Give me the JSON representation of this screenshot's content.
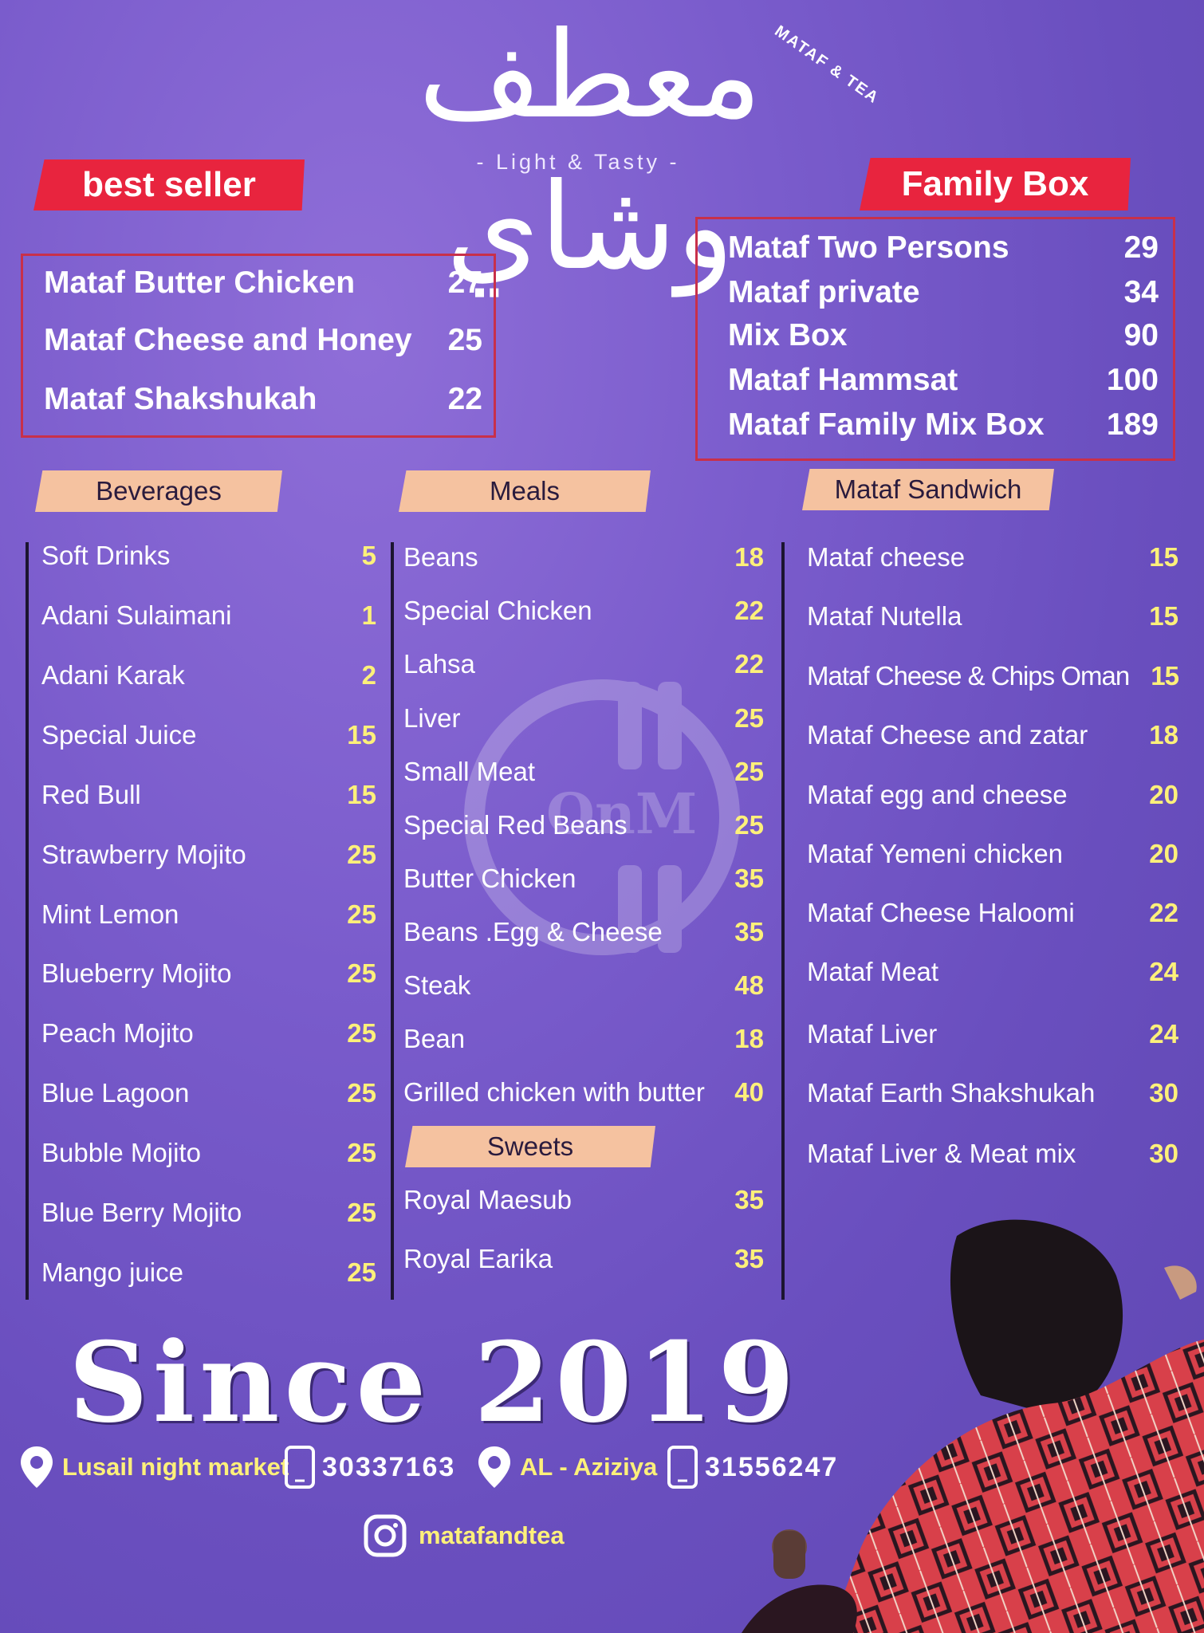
{
  "brand": {
    "arabic_logo": "معطف وشاي",
    "english_logo": "MATAF & TEA",
    "tagline": "- Light & Tasty -"
  },
  "best_seller": {
    "title": "best seller",
    "items": [
      {
        "name": "Mataf Butter Chicken",
        "price": "27"
      },
      {
        "name": "Mataf Cheese and Honey",
        "price": "25"
      },
      {
        "name": "Mataf Shakshukah",
        "price": "22"
      }
    ]
  },
  "family_box": {
    "title": "Family Box",
    "items": [
      {
        "name": "Mataf Two Persons",
        "price": "29"
      },
      {
        "name": "Mataf private",
        "price": "34"
      },
      {
        "name": "Mix Box",
        "price": "90"
      },
      {
        "name": "Mataf Hammsat",
        "price": "100"
      },
      {
        "name": "Mataf Family Mix Box",
        "price": "189"
      }
    ]
  },
  "beverages": {
    "title": "Beverages",
    "items": [
      {
        "name": "Soft Drinks",
        "price": "5"
      },
      {
        "name": "Adani Sulaimani",
        "price": "1"
      },
      {
        "name": "Adani Karak",
        "price": "2"
      },
      {
        "name": "Special Juice",
        "price": "15"
      },
      {
        "name": "Red Bull",
        "price": "15"
      },
      {
        "name": "Strawberry Mojito",
        "price": "25"
      },
      {
        "name": "Mint Lemon",
        "price": "25"
      },
      {
        "name": "Blueberry Mojito",
        "price": "25"
      },
      {
        "name": "Peach Mojito",
        "price": "25"
      },
      {
        "name": "Blue Lagoon",
        "price": "25"
      },
      {
        "name": "Bubble Mojito",
        "price": "25"
      },
      {
        "name": "Blue Berry Mojito",
        "price": "25"
      },
      {
        "name": "Mango juice",
        "price": "25"
      }
    ]
  },
  "meals": {
    "title": "Meals",
    "items": [
      {
        "name": "Beans",
        "price": "18"
      },
      {
        "name": "Special Chicken",
        "price": "22"
      },
      {
        "name": "Lahsa",
        "price": "22"
      },
      {
        "name": "Liver",
        "price": "25"
      },
      {
        "name": "Small Meat",
        "price": "25"
      },
      {
        "name": "Special Red Beans",
        "price": "25"
      },
      {
        "name": "Butter Chicken",
        "price": "35"
      },
      {
        "name": "Beans .Egg & Cheese",
        "price": "35"
      },
      {
        "name": "Steak",
        "price": "48"
      },
      {
        "name": "Bean",
        "price": "18"
      },
      {
        "name": "Grilled chicken with butter",
        "price": "40"
      }
    ]
  },
  "sweets": {
    "title": "Sweets",
    "items": [
      {
        "name": "Royal Maesub",
        "price": "35"
      },
      {
        "name": "Royal Earika",
        "price": "35"
      }
    ]
  },
  "sandwich": {
    "title": "Mataf Sandwich",
    "items": [
      {
        "name": "Mataf cheese",
        "price": "15"
      },
      {
        "name": "Mataf Nutella",
        "price": "15"
      },
      {
        "name": "Mataf Cheese & Chips Oman",
        "price": "15"
      },
      {
        "name": "Mataf Cheese and zatar",
        "price": "18"
      },
      {
        "name": "Mataf egg and cheese",
        "price": "20"
      },
      {
        "name": "Mataf Yemeni chicken",
        "price": "20"
      },
      {
        "name": "Mataf Cheese Haloomi",
        "price": "22"
      },
      {
        "name": "Mataf Meat",
        "price": "24"
      },
      {
        "name": "Mataf Liver",
        "price": "24"
      },
      {
        "name": "Mataf Earth Shakshukah",
        "price": "30"
      },
      {
        "name": "Mataf Liver & Meat mix",
        "price": "30"
      }
    ]
  },
  "footer": {
    "since": "Since 2019",
    "location1": "Lusail night market",
    "phone1": "30337163",
    "location2": "AL - Aziziya",
    "phone2": "31556247",
    "instagram": "matafandtea"
  },
  "watermark": {
    "text": "OnM"
  },
  "colors": {
    "background": "#7a5ccc",
    "tag_red": "#e8243e",
    "section_peach": "#f5c2a0",
    "price_yellow": "#fdf07a"
  },
  "icons": [
    "location-pin-icon",
    "phone-icon",
    "instagram-icon"
  ]
}
